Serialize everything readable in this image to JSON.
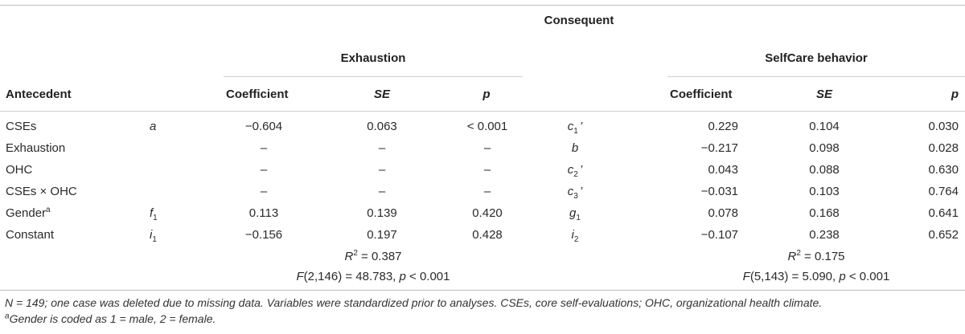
{
  "header": {
    "consequent": "Consequent",
    "exhaustion": "Exhaustion",
    "selfcare": "SelfCare behavior",
    "antecedent": "Antecedent",
    "cols_left": [
      "Coefficient",
      "SE",
      "p"
    ],
    "cols_right": [
      "Coefficient",
      "SE",
      "p"
    ]
  },
  "rows": [
    {
      "name": "CSEs",
      "sym_left": "a",
      "sym_left_sub": "",
      "left": [
        "−0.604",
        "0.063",
        "< 0.001"
      ],
      "sym_right": "c",
      "sym_right_sub": "1",
      "sym_right_prime": "’",
      "right": [
        "0.229",
        "0.104",
        "0.030"
      ]
    },
    {
      "name": "Exhaustion",
      "sym_left": "",
      "sym_left_sub": "",
      "left": [
        "–",
        "–",
        "–"
      ],
      "sym_right": "b",
      "sym_right_sub": "",
      "sym_right_prime": "",
      "right": [
        "−0.217",
        "0.098",
        "0.028"
      ]
    },
    {
      "name": "OHC",
      "sym_left": "",
      "sym_left_sub": "",
      "left": [
        "–",
        "–",
        "–"
      ],
      "sym_right": "c",
      "sym_right_sub": "2",
      "sym_right_prime": "’",
      "right": [
        "0.043",
        "0.088",
        "0.630"
      ]
    },
    {
      "name": "CSEs × OHC",
      "sym_left": "",
      "sym_left_sub": "",
      "left": [
        "–",
        "–",
        "–"
      ],
      "sym_right": "c",
      "sym_right_sub": "3",
      "sym_right_prime": "’",
      "right": [
        "−0.031",
        "0.103",
        "0.764"
      ]
    },
    {
      "name": "Gender",
      "name_sup": "a",
      "sym_left": "f",
      "sym_left_sub": "1",
      "left": [
        "0.113",
        "0.139",
        "0.420"
      ],
      "sym_right": "g",
      "sym_right_sub": "1",
      "sym_right_prime": "",
      "right": [
        "0.078",
        "0.168",
        "0.641"
      ]
    },
    {
      "name": "Constant",
      "sym_left": "i",
      "sym_left_sub": "1",
      "left": [
        "−0.156",
        "0.197",
        "0.428"
      ],
      "sym_right": "i",
      "sym_right_sub": "2",
      "sym_right_prime": "",
      "right": [
        "−0.107",
        "0.238",
        "0.652"
      ]
    }
  ],
  "stats": {
    "left_r2_prefix": "R",
    "left_r2_sup": "2",
    "left_r2_value": " = 0.387",
    "left_f_prefix": "F",
    "left_f_value": "(2,146) = 48.783, ",
    "left_p_label": "p",
    "left_p_value": " < 0.001",
    "right_r2_prefix": "R",
    "right_r2_sup": "2",
    "right_r2_value": " = 0.175",
    "right_f_prefix": "F",
    "right_f_value": "(5,143) = 5.090, ",
    "right_p_label": "p",
    "right_p_value": " < 0.001"
  },
  "footnotes": {
    "line1": "N = 149; one case was deleted due to missing data. Variables were standardized prior to analyses. CSEs, core self-evaluations; OHC, organizational health climate.",
    "line2_sup": "a",
    "line2": "Gender is coded as 1 = male, 2 = female."
  }
}
